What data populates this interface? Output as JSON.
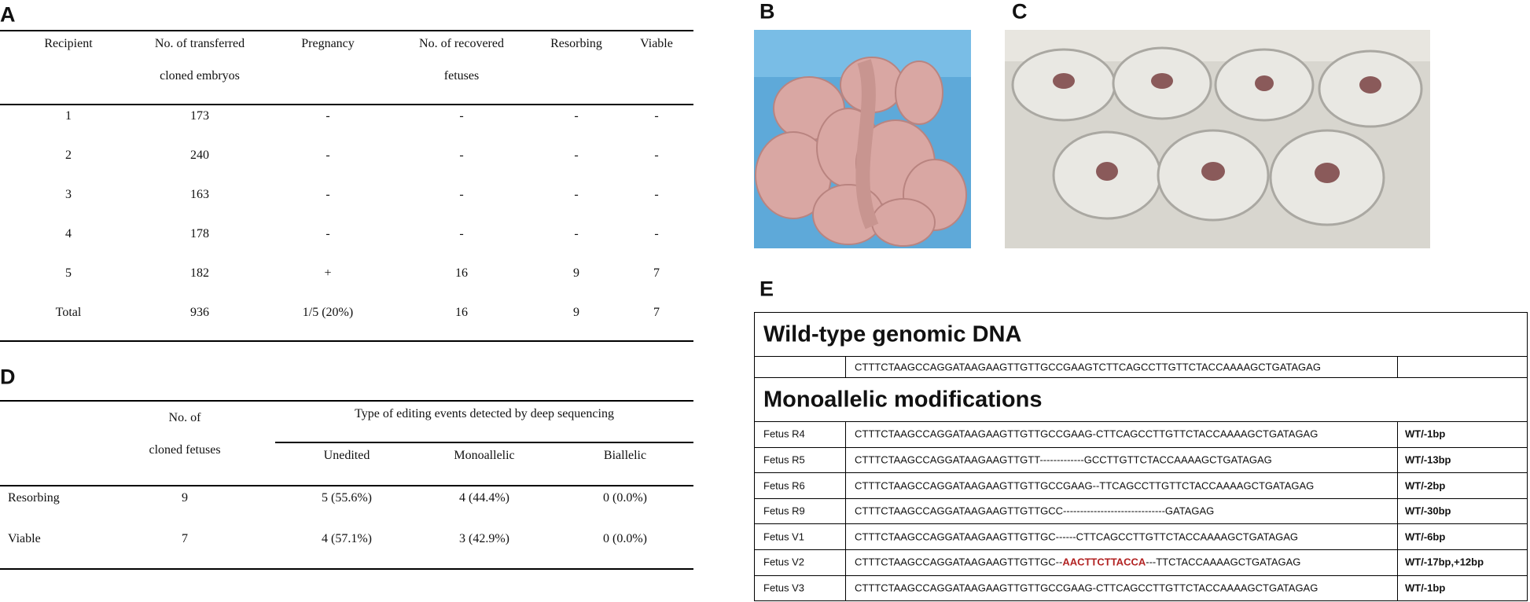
{
  "panel_labels": [
    "A",
    "B",
    "C",
    "D",
    "E"
  ],
  "table_a": {
    "headers": [
      [
        "Recipient"
      ],
      [
        "No. of transferred",
        "cloned embryos"
      ],
      [
        "Pregnancy"
      ],
      [
        "No. of recovered",
        "fetuses"
      ],
      [
        "Resorbing"
      ],
      [
        "Viable"
      ]
    ],
    "rows": [
      [
        1,
        173,
        "-",
        "-",
        "-",
        "-"
      ],
      [
        2,
        240,
        "-",
        "-",
        "-",
        "-"
      ],
      [
        3,
        163,
        "-",
        "-",
        "-",
        "-"
      ],
      [
        4,
        178,
        "-",
        "-",
        "-",
        "-"
      ],
      [
        5,
        182,
        "+",
        16,
        9,
        7
      ],
      [
        "Total",
        936,
        "1/5 (20%)",
        16,
        9,
        7
      ]
    ]
  },
  "table_d": {
    "fetuses_header": [
      "No. of",
      "cloned fetuses"
    ],
    "group_header": "Type of editing events detected by deep sequencing",
    "sub_headers": [
      "Unedited",
      "Monoallelic",
      "Biallelic"
    ],
    "rows": [
      [
        "Resorbing",
        9,
        "5 (55.6%)",
        "4 (44.4%)",
        "0 (0.0%)"
      ],
      [
        "Viable",
        7,
        "4 (57.1%)",
        "3 (42.9%)",
        "0 (0.0%)"
      ]
    ]
  },
  "table_e": {
    "wild_type_title": "Wild-type genomic DNA",
    "wild_type_sequence": "CTTTCTAAGCCAGGATAAGAAGTTGTTGCCGAAGTCTTCAGCCTTGTTCTACCAAAAGCTGATAGAG",
    "modifications_title": "Monoallelic modifications",
    "rows": [
      {
        "fetus": "Fetus R4",
        "sequence": [
          "CTTTCTAAGCCAGGATAAGAAGTTGTTGCCGAAG-CTTCAGCCTTGTTCTACCAAAAGCTGATAGAG"
        ],
        "result": "WT/-1bp"
      },
      {
        "fetus": "Fetus R5",
        "sequence": [
          "CTTTCTAAGCCAGGATAAGAAGTTGTT-------------GCCTTGTTCTACCAAAAGCTGATAGAG"
        ],
        "result": "WT/-13bp"
      },
      {
        "fetus": "Fetus R6",
        "sequence": [
          "CTTTCTAAGCCAGGATAAGAAGTTGTTGCCGAAG--TTCAGCCTTGTTCTACCAAAAGCTGATAGAG"
        ],
        "result": "WT/-2bp"
      },
      {
        "fetus": "Fetus R9",
        "sequence": [
          "CTTTCTAAGCCAGGATAAGAAGTTGTTGCC------------------------------GATAGAG"
        ],
        "result": "WT/-30bp"
      },
      {
        "fetus": "Fetus V1",
        "sequence": [
          "CTTTCTAAGCCAGGATAAGAAGTTGTTGC------CTTCAGCCTTGTTCTACCAAAAGCTGATAGAG"
        ],
        "result": "WT/-6bp"
      },
      {
        "fetus": "Fetus V2",
        "sequence": [
          "CTTTCTAAGCCAGGATAAGAAGTTGTTGC--",
          {
            "text": "AACTTCTTACCA",
            "color": "#b22222"
          },
          "---TTCTACCAAAAGCTGATAGAG"
        ],
        "result": "WT/-17bp,+12bp"
      },
      {
        "fetus": "Fetus V3",
        "sequence": [
          "CTTTCTAAGCCAGGATAAGAAGTTGTTGCCGAAG-CTTCAGCCTTGTTCTACCAAAAGCTGATAGAG"
        ],
        "result": "WT/-1bp"
      }
    ]
  }
}
